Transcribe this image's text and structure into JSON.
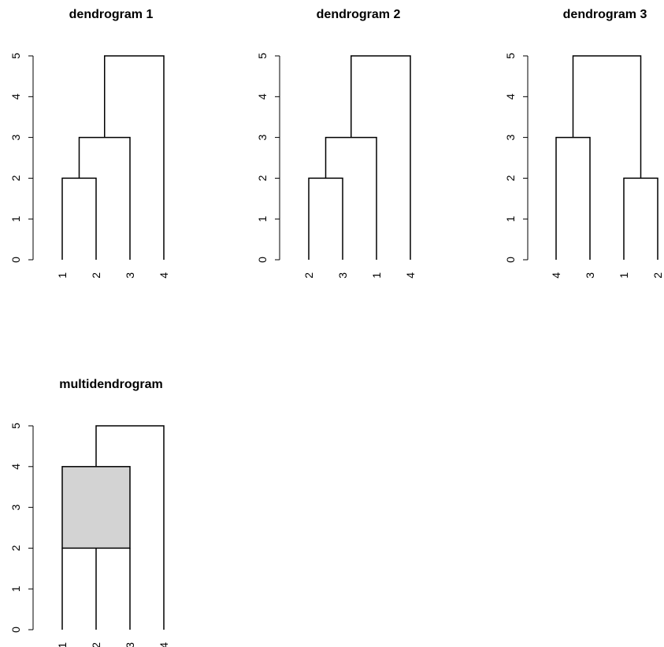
{
  "chart_data": [
    {
      "type": "dendrogram",
      "title": "dendrogram 1",
      "ylim": [
        0,
        5
      ],
      "yticks": [
        0,
        1,
        2,
        3,
        4,
        5
      ],
      "leaves": [
        "1",
        "2",
        "3",
        "4"
      ],
      "merges": [
        {
          "left": [
            "1"
          ],
          "right": [
            "2"
          ],
          "height": 2
        },
        {
          "left": [
            "1",
            "2"
          ],
          "right": [
            "3"
          ],
          "height": 3
        },
        {
          "left": [
            "1",
            "2",
            "3"
          ],
          "right": [
            "4"
          ],
          "height": 5
        }
      ]
    },
    {
      "type": "dendrogram",
      "title": "dendrogram 2",
      "ylim": [
        0,
        5
      ],
      "yticks": [
        0,
        1,
        2,
        3,
        4,
        5
      ],
      "leaves": [
        "2",
        "3",
        "1",
        "4"
      ],
      "merges": [
        {
          "left": [
            "2"
          ],
          "right": [
            "3"
          ],
          "height": 2
        },
        {
          "left": [
            "2",
            "3"
          ],
          "right": [
            "1"
          ],
          "height": 3
        },
        {
          "left": [
            "2",
            "3",
            "1"
          ],
          "right": [
            "4"
          ],
          "height": 5
        }
      ]
    },
    {
      "type": "dendrogram",
      "title": "dendrogram 3",
      "ylim": [
        0,
        5
      ],
      "yticks": [
        0,
        1,
        2,
        3,
        4,
        5
      ],
      "leaves": [
        "4",
        "3",
        "1",
        "2"
      ],
      "merges": [
        {
          "left": [
            "4"
          ],
          "right": [
            "3"
          ],
          "height": 3
        },
        {
          "left": [
            "1"
          ],
          "right": [
            "2"
          ],
          "height": 2
        },
        {
          "left": [
            "4",
            "3"
          ],
          "right": [
            "1",
            "2"
          ],
          "height": 5
        }
      ]
    },
    {
      "type": "multidendrogram",
      "title": "multidendrogram",
      "ylim": [
        0,
        5
      ],
      "yticks": [
        0,
        1,
        2,
        3,
        4,
        5
      ],
      "leaves": [
        "1",
        "2",
        "3",
        "4"
      ],
      "merges": [
        {
          "members": [
            "1",
            "2",
            "3"
          ],
          "height_min": 2,
          "height_max": 4,
          "band_fill": "#d3d3d3"
        },
        {
          "members": [
            "1",
            "2",
            "3",
            "4"
          ],
          "height": 5
        }
      ]
    }
  ]
}
